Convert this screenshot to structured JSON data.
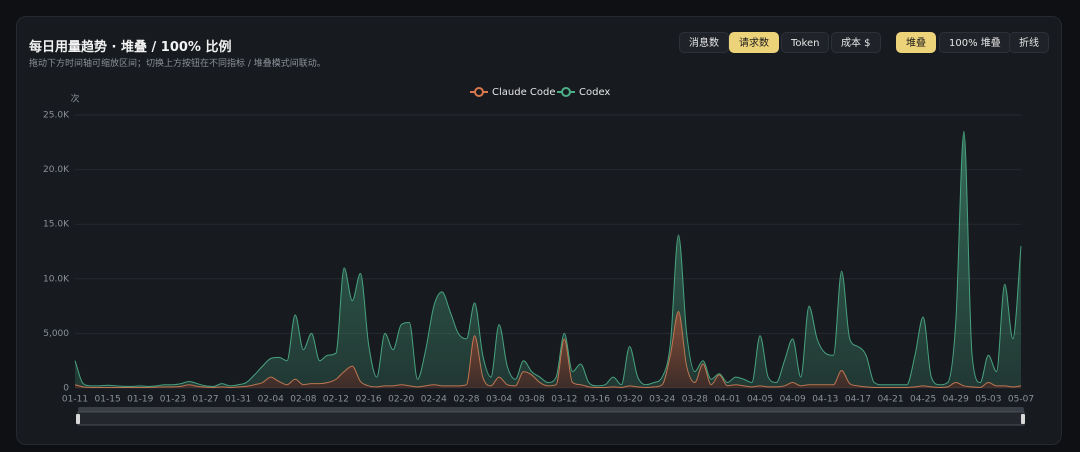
{
  "header": {
    "title": "每日用量趋势 · 堆叠 / 100% 比例",
    "subtitle": "拖动下方时间轴可缩放区间；切换上方按钮在不同指标 / 堆叠模式间联动。"
  },
  "controls": {
    "metrics": [
      "消息数",
      "请求数",
      "Token",
      "成本 $"
    ],
    "modes": [
      "堆叠",
      "100% 堆叠",
      "折线"
    ]
  },
  "chart_data": {
    "type": "area",
    "stacked": true,
    "y_label": "次",
    "legend": "top",
    "grid": true,
    "ylim": [
      0,
      25000
    ],
    "yticks": [
      0,
      {
        "value": 5000,
        "label": "5,000"
      },
      {
        "value": 10000,
        "label": "10.0K"
      },
      {
        "value": 15000,
        "label": "15.0K"
      },
      {
        "value": 20000,
        "label": "20.0K"
      },
      {
        "value": 25000,
        "label": "25.0K"
      }
    ],
    "categories": [
      "01-11",
      null,
      null,
      null,
      "01-15",
      null,
      null,
      null,
      "01-19",
      null,
      null,
      null,
      "01-23",
      null,
      null,
      null,
      "01-27",
      null,
      null,
      null,
      "01-31",
      null,
      null,
      null,
      "02-04",
      null,
      null,
      null,
      "02-08",
      null,
      null,
      null,
      "02-12",
      null,
      null,
      null,
      "02-16",
      null,
      null,
      null,
      "02-20",
      null,
      null,
      null,
      "02-24",
      null,
      null,
      null,
      "02-28",
      null,
      null,
      null,
      "03-04",
      null,
      null,
      null,
      "03-08",
      null,
      null,
      null,
      "03-12",
      null,
      null,
      null,
      "03-16",
      null,
      null,
      null,
      "03-20",
      null,
      null,
      null,
      "03-24",
      null,
      null,
      null,
      "03-28",
      null,
      null,
      null,
      "04-01",
      null,
      null,
      null,
      "04-05",
      null,
      null,
      null,
      "04-09",
      null,
      null,
      null,
      "04-13",
      null,
      null,
      null,
      "04-17",
      null,
      null,
      null,
      "04-21",
      null,
      null,
      null,
      "04-25",
      null,
      null,
      null,
      "04-29",
      null,
      null,
      null,
      "05-03",
      null,
      null,
      null,
      "05-07"
    ],
    "series": [
      {
        "name": "Claude Code",
        "color": "#d9774f",
        "values": [
          300,
          100,
          50,
          50,
          50,
          50,
          50,
          50,
          50,
          50,
          80,
          100,
          100,
          150,
          300,
          150,
          80,
          50,
          100,
          50,
          100,
          150,
          300,
          500,
          1000,
          600,
          300,
          800,
          300,
          400,
          400,
          500,
          800,
          1500,
          2000,
          600,
          200,
          100,
          200,
          200,
          300,
          200,
          100,
          200,
          300,
          200,
          200,
          200,
          300,
          4800,
          1000,
          200,
          1000,
          300,
          200,
          1500,
          1200,
          500,
          200,
          300,
          4500,
          500,
          300,
          100,
          50,
          50,
          100,
          50,
          200,
          100,
          50,
          100,
          300,
          3000,
          7000,
          2000,
          500,
          2200,
          300,
          1200,
          200,
          300,
          200,
          100,
          200,
          100,
          100,
          200,
          500,
          200,
          300,
          300,
          300,
          300,
          1600,
          400,
          200,
          100,
          50,
          50,
          50,
          50,
          50,
          100,
          200,
          100,
          50,
          100,
          500,
          200,
          100,
          50,
          500,
          200,
          200,
          100,
          200
        ]
      },
      {
        "name": "Codex",
        "color": "#4caf87",
        "values": [
          2200,
          300,
          150,
          150,
          200,
          150,
          100,
          100,
          150,
          100,
          120,
          200,
          200,
          250,
          300,
          250,
          120,
          100,
          300,
          150,
          200,
          350,
          900,
          1500,
          1700,
          2200,
          2200,
          5900,
          3200,
          4600,
          2100,
          2500,
          2400,
          9500,
          6000,
          9900,
          3800,
          900,
          4800,
          3300,
          5500,
          5800,
          700,
          3300,
          7200,
          8600,
          6800,
          4800,
          4200,
          3000,
          2000,
          800,
          4800,
          1700,
          600,
          1000,
          300,
          500,
          300,
          700,
          500,
          1000,
          1900,
          400,
          150,
          250,
          900,
          250,
          3600,
          900,
          250,
          400,
          700,
          1000,
          7000,
          3000,
          1000,
          300,
          500,
          100,
          300,
          700,
          600,
          400,
          4600,
          900,
          400,
          2300,
          4000,
          800,
          7200,
          4200,
          2900,
          2700,
          9100,
          4100,
          3600,
          2900,
          450,
          250,
          250,
          250,
          250,
          2900,
          6300,
          900,
          250,
          400,
          5500,
          23300,
          2900,
          450,
          2500,
          1300,
          9300,
          4400,
          12800
        ]
      }
    ]
  }
}
